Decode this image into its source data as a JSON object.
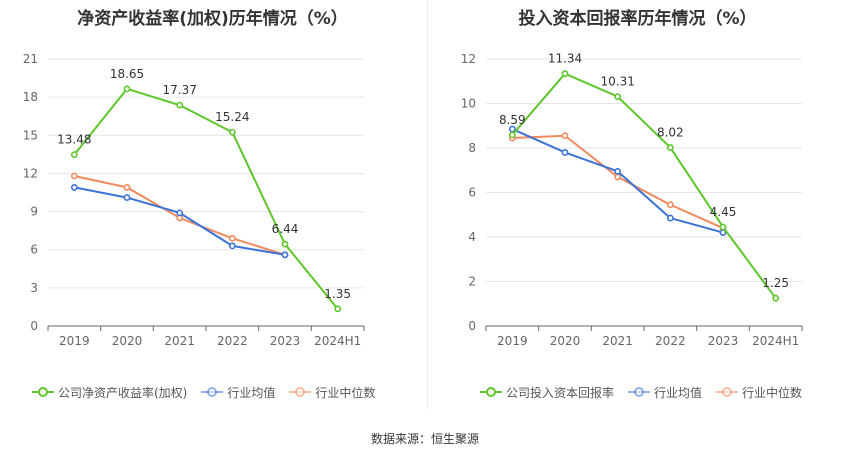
{
  "source_text": "数据来源：恒生聚源",
  "chart_data": [
    {
      "type": "line",
      "title": "净资产收益率(加权)历年情况（%）",
      "categories": [
        "2019",
        "2020",
        "2021",
        "2022",
        "2023",
        "2024H1"
      ],
      "yticks": [
        "0",
        "3",
        "6",
        "9",
        "12",
        "15",
        "18",
        "21"
      ],
      "ylim": [
        0,
        21
      ],
      "grid": true,
      "legend_position": "bottom",
      "series": [
        {
          "name": "公司净资产收益率(加权)",
          "color": "#5ec62a",
          "values": [
            13.48,
            18.65,
            17.37,
            15.24,
            6.44,
            1.35
          ],
          "labels": [
            "13.48",
            "18.65",
            "17.37",
            "15.24",
            "6.44",
            "1.35"
          ]
        },
        {
          "name": "行业均值",
          "color": "#3d73d6",
          "values": [
            10.9,
            10.1,
            8.9,
            6.3,
            5.6,
            null
          ]
        },
        {
          "name": "行业中位数",
          "color": "#f08a5d",
          "values": [
            11.8,
            10.9,
            8.5,
            6.9,
            5.6,
            null
          ]
        }
      ]
    },
    {
      "type": "line",
      "title": "投入资本回报率历年情况（%）",
      "categories": [
        "2019",
        "2020",
        "2021",
        "2022",
        "2023",
        "2024H1"
      ],
      "yticks": [
        "0",
        "2",
        "4",
        "6",
        "8",
        "10",
        "12"
      ],
      "ylim": [
        0,
        12
      ],
      "grid": true,
      "legend_position": "bottom",
      "series": [
        {
          "name": "公司投入资本回报率",
          "color": "#5ec62a",
          "values": [
            8.59,
            11.34,
            10.31,
            8.02,
            4.45,
            1.25
          ],
          "labels": [
            "8.59",
            "11.34",
            "10.31",
            "8.02",
            "4.45",
            "1.25"
          ]
        },
        {
          "name": "行业均值",
          "color": "#3d73d6",
          "values": [
            8.85,
            7.8,
            6.95,
            4.85,
            4.2,
            null
          ]
        },
        {
          "name": "行业中位数",
          "color": "#f08a5d",
          "values": [
            8.45,
            8.55,
            6.7,
            5.45,
            4.4,
            null
          ]
        }
      ]
    }
  ]
}
